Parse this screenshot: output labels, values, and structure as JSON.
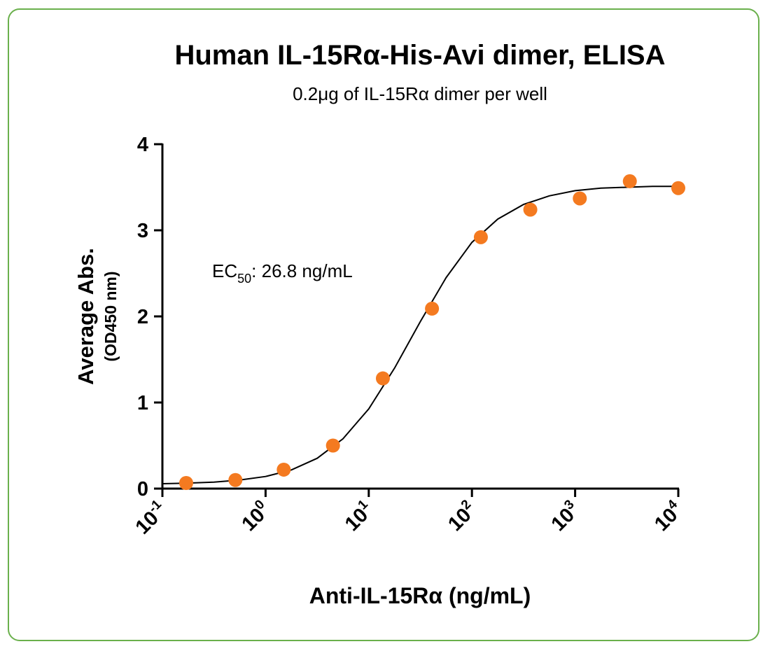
{
  "chart_data": {
    "type": "scatter",
    "title": "Human IL-15Rα-His-Avi dimer, ELISA",
    "subtitle": "0.2μg of IL-15Rα dimer per well",
    "y_label": "Average Abs.",
    "y_label_unit": "(OD450 nm)",
    "x_label": "Anti-IL-15Rα (ng/mL)",
    "annotation": {
      "text": "EC",
      "subscript": "50",
      "rest": ": 26.8 ng/mL"
    },
    "x_scale": "log",
    "xlim": [
      0.1,
      10000
    ],
    "xticks": [
      {
        "value": 0.1,
        "label": "10",
        "exponent": "-1"
      },
      {
        "value": 1,
        "label": "10",
        "exponent": "0"
      },
      {
        "value": 10,
        "label": "10",
        "exponent": "1"
      },
      {
        "value": 100,
        "label": "10",
        "exponent": "2"
      },
      {
        "value": 1000,
        "label": "10",
        "exponent": "3"
      },
      {
        "value": 10000,
        "label": "10",
        "exponent": "4"
      }
    ],
    "ylim": [
      0,
      4
    ],
    "yticks": [
      0,
      1,
      2,
      3,
      4
    ],
    "series": [
      {
        "color": "#f47a20",
        "x": [
          0.17,
          0.51,
          1.5,
          4.5,
          13.7,
          41,
          122,
          368,
          1110,
          3390,
          10000
        ],
        "values": [
          0.065,
          0.1,
          0.22,
          0.5,
          1.28,
          2.09,
          2.92,
          3.24,
          3.37,
          3.57,
          3.49
        ]
      }
    ],
    "curve": {
      "color": "#000000",
      "x": [
        0.1,
        0.178,
        0.316,
        0.562,
        1,
        1.78,
        3.16,
        5.62,
        10,
        17.8,
        31.6,
        56.2,
        100,
        178,
        316,
        562,
        1000,
        1778,
        3162,
        5623,
        10000
      ],
      "y": [
        0.057,
        0.064,
        0.076,
        0.099,
        0.141,
        0.217,
        0.352,
        0.578,
        0.926,
        1.4,
        1.94,
        2.45,
        2.86,
        3.13,
        3.3,
        3.4,
        3.46,
        3.49,
        3.5,
        3.51,
        3.51
      ]
    }
  }
}
